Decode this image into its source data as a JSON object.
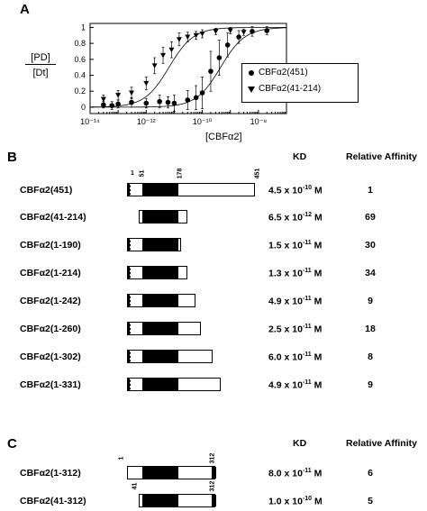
{
  "panel_a": {
    "label": "A",
    "ylabel_top": "[PD]",
    "ylabel_bottom": "[Dt]",
    "xlabel": "[CBFα2]",
    "legend": [
      "CBFα2(451)",
      "CBFα2(41-214)"
    ]
  },
  "chart_data": {
    "type": "scatter",
    "xscale": "log",
    "xlim": [
      1e-14,
      1e-07
    ],
    "ylim": [
      -0.08,
      1.05
    ],
    "xticks": [
      "10⁻¹⁴",
      "10⁻¹²",
      "10⁻¹⁰",
      "10⁻⁸"
    ],
    "yticks": [
      "0",
      "0.2",
      "0.4",
      "0.6",
      "0.8",
      "1"
    ],
    "series": [
      {
        "name": "CBFα2(451)",
        "marker": "circle",
        "points": [
          {
            "x": 3e-14,
            "y": 0.03,
            "err": 0.04
          },
          {
            "x": 6e-14,
            "y": 0.02,
            "err": 0.05
          },
          {
            "x": 1e-13,
            "y": 0.04,
            "err": 0.05
          },
          {
            "x": 3e-13,
            "y": 0.06,
            "err": 0.06
          },
          {
            "x": 1e-12,
            "y": 0.05,
            "err": 0.06
          },
          {
            "x": 3e-12,
            "y": 0.07,
            "err": 0.08
          },
          {
            "x": 6e-12,
            "y": 0.06,
            "err": 0.07
          },
          {
            "x": 1e-11,
            "y": 0.05,
            "err": 0.1
          },
          {
            "x": 3e-11,
            "y": 0.09,
            "err": 0.12
          },
          {
            "x": 6e-11,
            "y": 0.12,
            "err": 0.15
          },
          {
            "x": 1e-10,
            "y": 0.18,
            "err": 0.2
          },
          {
            "x": 2e-10,
            "y": 0.45,
            "err": 0.25
          },
          {
            "x": 4e-10,
            "y": 0.62,
            "err": 0.22
          },
          {
            "x": 8e-10,
            "y": 0.78,
            "err": 0.15
          },
          {
            "x": 2e-09,
            "y": 0.88,
            "err": 0.08
          },
          {
            "x": 6e-09,
            "y": 0.95,
            "err": 0.06
          },
          {
            "x": 2e-08,
            "y": 0.96,
            "err": 0.05
          }
        ],
        "fit_kd": 4.5e-10
      },
      {
        "name": "CBFα2(41-214)",
        "marker": "triangle-down",
        "points": [
          {
            "x": 3e-14,
            "y": 0.1,
            "err": 0.05
          },
          {
            "x": 1e-13,
            "y": 0.15,
            "err": 0.06
          },
          {
            "x": 3e-13,
            "y": 0.18,
            "err": 0.07
          },
          {
            "x": 1e-12,
            "y": 0.3,
            "err": 0.08
          },
          {
            "x": 2e-12,
            "y": 0.52,
            "err": 0.1
          },
          {
            "x": 4e-12,
            "y": 0.65,
            "err": 0.1
          },
          {
            "x": 8e-12,
            "y": 0.72,
            "err": 0.1
          },
          {
            "x": 1.5e-11,
            "y": 0.85,
            "err": 0.08
          },
          {
            "x": 3e-11,
            "y": 0.88,
            "err": 0.06
          },
          {
            "x": 6e-11,
            "y": 0.9,
            "err": 0.05
          },
          {
            "x": 1e-10,
            "y": 0.92,
            "err": 0.05
          },
          {
            "x": 3e-10,
            "y": 0.95,
            "err": 0.04
          },
          {
            "x": 1e-09,
            "y": 0.96,
            "err": 0.04
          },
          {
            "x": 3e-09,
            "y": 0.94,
            "err": 0.04
          }
        ],
        "fit_kd": 6.5e-12
      }
    ]
  },
  "panel_b": {
    "label": "B",
    "kd_header": "KD",
    "aff_header": "Relative Affinity",
    "rows": [
      {
        "name": "CBFα2(451)",
        "kd_mant": "4.5 x 10",
        "kd_exp": "-10",
        "unit": " M",
        "aff": "1",
        "start": 1,
        "end": 451,
        "hatch": true,
        "labels": [
          "1",
          "51",
          "178",
          "451"
        ]
      },
      {
        "name": "CBFα2(41-214)",
        "kd_mant": "6.5 x 10",
        "kd_exp": "-12",
        "unit": " M",
        "aff": "69",
        "start": 41,
        "end": 214,
        "hatch": false
      },
      {
        "name": "CBFα2(1-190)",
        "kd_mant": "1.5 x 10",
        "kd_exp": "-11",
        "unit": " M",
        "aff": "30",
        "start": 1,
        "end": 190,
        "hatch": true
      },
      {
        "name": "CBFα2(1-214)",
        "kd_mant": "1.3 x 10",
        "kd_exp": "-11",
        "unit": " M",
        "aff": "34",
        "start": 1,
        "end": 214,
        "hatch": true
      },
      {
        "name": "CBFα2(1-242)",
        "kd_mant": "4.9 x 10",
        "kd_exp": "-11",
        "unit": " M",
        "aff": "9",
        "start": 1,
        "end": 242,
        "hatch": true
      },
      {
        "name": "CBFα2(1-260)",
        "kd_mant": "2.5 x 10",
        "kd_exp": "-11",
        "unit": " M",
        "aff": "18",
        "start": 1,
        "end": 260,
        "hatch": true
      },
      {
        "name": "CBFα2(1-302)",
        "kd_mant": "6.0 x 10",
        "kd_exp": "-11",
        "unit": " M",
        "aff": "8",
        "start": 1,
        "end": 302,
        "hatch": true
      },
      {
        "name": "CBFα2(1-331)",
        "kd_mant": "4.9 x 10",
        "kd_exp": "-11",
        "unit": " M",
        "aff": "9",
        "start": 1,
        "end": 331,
        "hatch": true
      }
    ]
  },
  "panel_c": {
    "label": "C",
    "kd_header": "KD",
    "aff_header": "Relative Affinity",
    "rows": [
      {
        "name": "CBFα2(1-312)",
        "kd_mant": "8.0 x 10",
        "kd_exp": "-11",
        "unit": " M",
        "aff": "6",
        "start": 1,
        "end": 312,
        "labels": [
          "1",
          "312"
        ]
      },
      {
        "name": "CBFα2(41-312)",
        "kd_mant": "1.0 x 10",
        "kd_exp": "-10",
        "unit": " M",
        "aff": "5",
        "start": 41,
        "end": 312,
        "labels": [
          "41",
          "312"
        ]
      }
    ]
  }
}
